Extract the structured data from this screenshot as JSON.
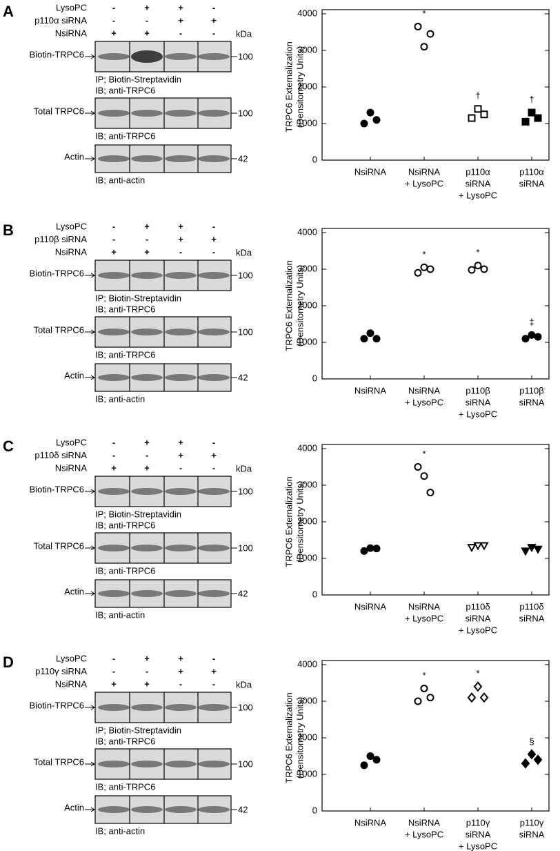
{
  "panels": [
    {
      "letter": "A",
      "kda": "kDa",
      "conditions": [
        {
          "label": "LysoPC",
          "signs": [
            "-",
            "+",
            "+",
            "-"
          ]
        },
        {
          "label": "p110α siRNA",
          "signs": [
            "-",
            "-",
            "+",
            "+"
          ]
        },
        {
          "label": "NsiRNA",
          "signs": [
            "+",
            "+",
            "-",
            "-"
          ]
        }
      ],
      "blots": [
        {
          "label": "Biotin-TRPC6",
          "size": "100",
          "captions": [
            "IP; Biotin-Streptavidin",
            "IB; anti-TRPC6"
          ]
        },
        {
          "label": "Total TRPC6",
          "size": "100",
          "captions": [
            "IB; anti-TRPC6"
          ]
        },
        {
          "label": "Actin",
          "size": "42",
          "captions": [
            "IB; anti-actin"
          ]
        }
      ]
    },
    {
      "letter": "B",
      "kda": "kDa",
      "conditions": [
        {
          "label": "LysoPC",
          "signs": [
            "-",
            "+",
            "+",
            "-"
          ]
        },
        {
          "label": "p110β siRNA",
          "signs": [
            "-",
            "-",
            "+",
            "+"
          ]
        },
        {
          "label": "NsiRNA",
          "signs": [
            "+",
            "+",
            "-",
            "-"
          ]
        }
      ],
      "blots": [
        {
          "label": "Biotin-TRPC6",
          "size": "100",
          "captions": [
            "IP; Biotin-Streptavidin",
            "IB; anti-TRPC6"
          ]
        },
        {
          "label": "Total TRPC6",
          "size": "100",
          "captions": [
            "IB; anti-TRPC6"
          ]
        },
        {
          "label": "Actin",
          "size": "42",
          "captions": [
            "IB; anti-actin"
          ]
        }
      ]
    },
    {
      "letter": "C",
      "kda": "kDa",
      "conditions": [
        {
          "label": "LysoPC",
          "signs": [
            "-",
            "+",
            "+",
            "-"
          ]
        },
        {
          "label": "p110δ siRNA",
          "signs": [
            "-",
            "-",
            "+",
            "+"
          ]
        },
        {
          "label": "NsiRNA",
          "signs": [
            "+",
            "+",
            "-",
            "-"
          ]
        }
      ],
      "blots": [
        {
          "label": "Biotin-TRPC6",
          "size": "100",
          "captions": [
            "IP; Biotin-Streptavidin",
            "IB; anti-TRPC6"
          ]
        },
        {
          "label": "Total TRPC6",
          "size": "100",
          "captions": [
            "IB; anti-TRPC6"
          ]
        },
        {
          "label": "Actin",
          "size": "42",
          "captions": [
            "IB; anti-actin"
          ]
        }
      ]
    },
    {
      "letter": "D",
      "kda": "kDa",
      "conditions": [
        {
          "label": "LysoPC",
          "signs": [
            "-",
            "+",
            "+",
            "-"
          ]
        },
        {
          "label": "p110γ siRNA",
          "signs": [
            "-",
            "-",
            "+",
            "+"
          ]
        },
        {
          "label": "NsiRNA",
          "signs": [
            "+",
            "+",
            "-",
            "-"
          ]
        }
      ],
      "blots": [
        {
          "label": "Biotin-TRPC6",
          "size": "100",
          "captions": [
            "IP; Biotin-Streptavidin",
            "IB; anti-TRPC6"
          ]
        },
        {
          "label": "Total TRPC6",
          "size": "100",
          "captions": [
            "IB; anti-TRPC6"
          ]
        },
        {
          "label": "Actin",
          "size": "42",
          "captions": [
            "IB; anti-actin"
          ]
        }
      ]
    }
  ],
  "chart_data": [
    {
      "type": "scatter",
      "ylabel": [
        "TRPC6 Externalization",
        "(Densitometry Units)"
      ],
      "ylim": [
        0,
        4000
      ],
      "yticks": [
        0,
        1000,
        2000,
        3000,
        4000
      ],
      "categories": [
        [
          "NsiRNA"
        ],
        [
          "NsiRNA",
          "+ LysoPC"
        ],
        [
          "p110α",
          "siRNA",
          "+ LysoPC"
        ],
        [
          "p110α",
          "siRNA"
        ]
      ],
      "series": [
        {
          "marker": "circle",
          "filled": true,
          "values": [
            1000,
            1300,
            1100
          ]
        },
        {
          "marker": "circle",
          "filled": false,
          "values": [
            3650,
            3100,
            3450
          ],
          "label": "*"
        },
        {
          "marker": "square",
          "filled": false,
          "values": [
            1150,
            1400,
            1250
          ],
          "label": "†"
        },
        {
          "marker": "square",
          "filled": true,
          "values": [
            1050,
            1300,
            1150
          ],
          "label": "†"
        }
      ]
    },
    {
      "type": "scatter",
      "ylabel": [
        "TRPC6 Externalization",
        "(Densitometry Units)"
      ],
      "ylim": [
        0,
        4000
      ],
      "yticks": [
        0,
        1000,
        2000,
        3000,
        4000
      ],
      "categories": [
        [
          "NsiRNA"
        ],
        [
          "NsiRNA",
          "+ LysoPC"
        ],
        [
          "p110β",
          "siRNA",
          "+ LysoPC"
        ],
        [
          "p110β",
          "siRNA"
        ]
      ],
      "series": [
        {
          "marker": "circle",
          "filled": true,
          "values": [
            1100,
            1250,
            1100
          ]
        },
        {
          "marker": "circle",
          "filled": false,
          "values": [
            2900,
            3050,
            3000
          ],
          "label": "*"
        },
        {
          "marker": "circle",
          "filled": false,
          "values": [
            2980,
            3100,
            3000
          ],
          "label": "*"
        },
        {
          "marker": "circle",
          "filled": true,
          "values": [
            1100,
            1200,
            1150
          ],
          "label": "‡"
        }
      ]
    },
    {
      "type": "scatter",
      "ylabel": [
        "TRPC6 Externalization",
        "(Densitometry Units)"
      ],
      "ylim": [
        0,
        4000
      ],
      "yticks": [
        0,
        1000,
        2000,
        3000,
        4000
      ],
      "categories": [
        [
          "NsiRNA"
        ],
        [
          "NsiRNA",
          "+ LysoPC"
        ],
        [
          "p110δ",
          "siRNA",
          "+ LysoPC"
        ],
        [
          "p110δ",
          "siRNA"
        ]
      ],
      "series": [
        {
          "marker": "circle",
          "filled": true,
          "values": [
            1200,
            1280,
            1270
          ]
        },
        {
          "marker": "circle",
          "filled": false,
          "values": [
            3500,
            3250,
            2800
          ],
          "label": "*"
        },
        {
          "marker": "triangle-down",
          "filled": false,
          "values": [
            1300,
            1350,
            1350
          ]
        },
        {
          "marker": "triangle-down",
          "filled": true,
          "values": [
            1200,
            1300,
            1250
          ]
        }
      ]
    },
    {
      "type": "scatter",
      "ylabel": [
        "TRPC6 Externalization",
        "(Densitometry Units)"
      ],
      "ylim": [
        0,
        4000
      ],
      "yticks": [
        0,
        1000,
        2000,
        3000,
        4000
      ],
      "categories": [
        [
          "NsiRNA"
        ],
        [
          "NsiRNA",
          "+ LysoPC"
        ],
        [
          "p110γ",
          "siRNA",
          "+ LysoPC"
        ],
        [
          "p110γ",
          "siRNA"
        ]
      ],
      "series": [
        {
          "marker": "circle",
          "filled": true,
          "values": [
            1250,
            1500,
            1400
          ]
        },
        {
          "marker": "circle",
          "filled": false,
          "values": [
            3000,
            3350,
            3100
          ],
          "label": "*"
        },
        {
          "marker": "diamond",
          "filled": false,
          "values": [
            3100,
            3400,
            3100
          ],
          "label": "*"
        },
        {
          "marker": "diamond",
          "filled": true,
          "values": [
            1300,
            1550,
            1400
          ],
          "label": "§"
        }
      ]
    }
  ]
}
